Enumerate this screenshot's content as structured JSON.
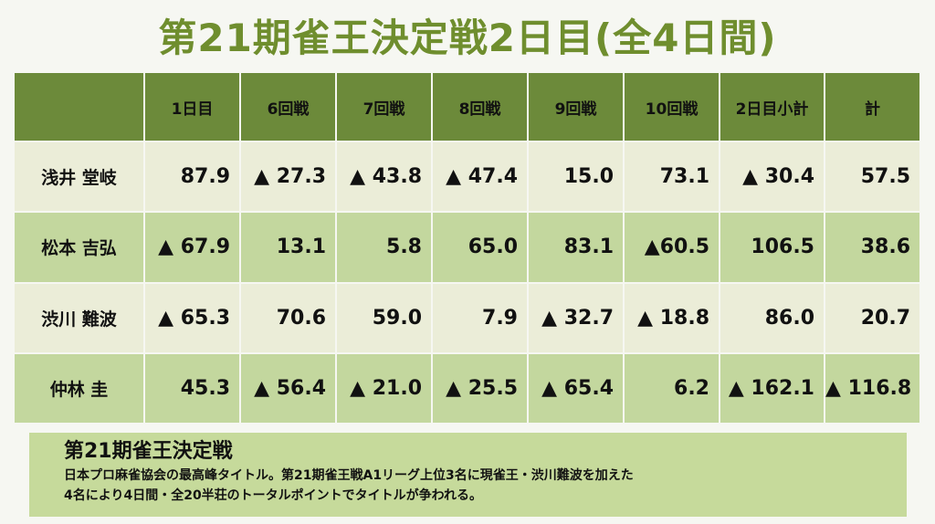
{
  "page": {
    "title": "第21期雀王決定戦2日目(全4日間)"
  },
  "table": {
    "headers": [
      "",
      "1日目",
      "6回戦",
      "7回戦",
      "8回戦",
      "9回戦",
      "10回戦",
      "2日目小計",
      "計"
    ],
    "rows": [
      {
        "name": "浅井 堂岐",
        "cells": [
          "87.9",
          "▲ 27.3",
          "▲ 43.8",
          "▲ 47.4",
          "15.0",
          "73.1",
          "▲ 30.4",
          "57.5"
        ]
      },
      {
        "name": "松本 吉弘",
        "cells": [
          "▲ 67.9",
          "13.1",
          "5.8",
          "65.0",
          "83.1",
          "▲60.5",
          "106.5",
          "38.6"
        ]
      },
      {
        "name": "渋川 難波",
        "cells": [
          "▲ 65.3",
          "70.6",
          "59.0",
          "7.9",
          "▲ 32.7",
          "▲ 18.8",
          "86.0",
          "20.7"
        ]
      },
      {
        "name": "仲林 圭",
        "cells": [
          "45.3",
          "▲ 56.4",
          "▲ 21.0",
          "▲ 25.5",
          "▲ 65.4",
          "6.2",
          "▲ 162.1",
          "▲ 116.8"
        ]
      }
    ]
  },
  "info": {
    "title": "第21期雀王決定戦",
    "line1": "日本プロ麻雀協会の最高峰タイトル。第21期雀王戦A1リーグ上位3名に現雀王・渋川難波を加えた",
    "line2": "4名により4日間・全20半荘のトータルポイントでタイトルが争われる。"
  },
  "colors": {
    "title": "#6f8e2e",
    "header": "#6c8a3a",
    "row_light": "#ebedd8",
    "row_green": "#c3d79e",
    "info_box": "#c6da9b"
  }
}
